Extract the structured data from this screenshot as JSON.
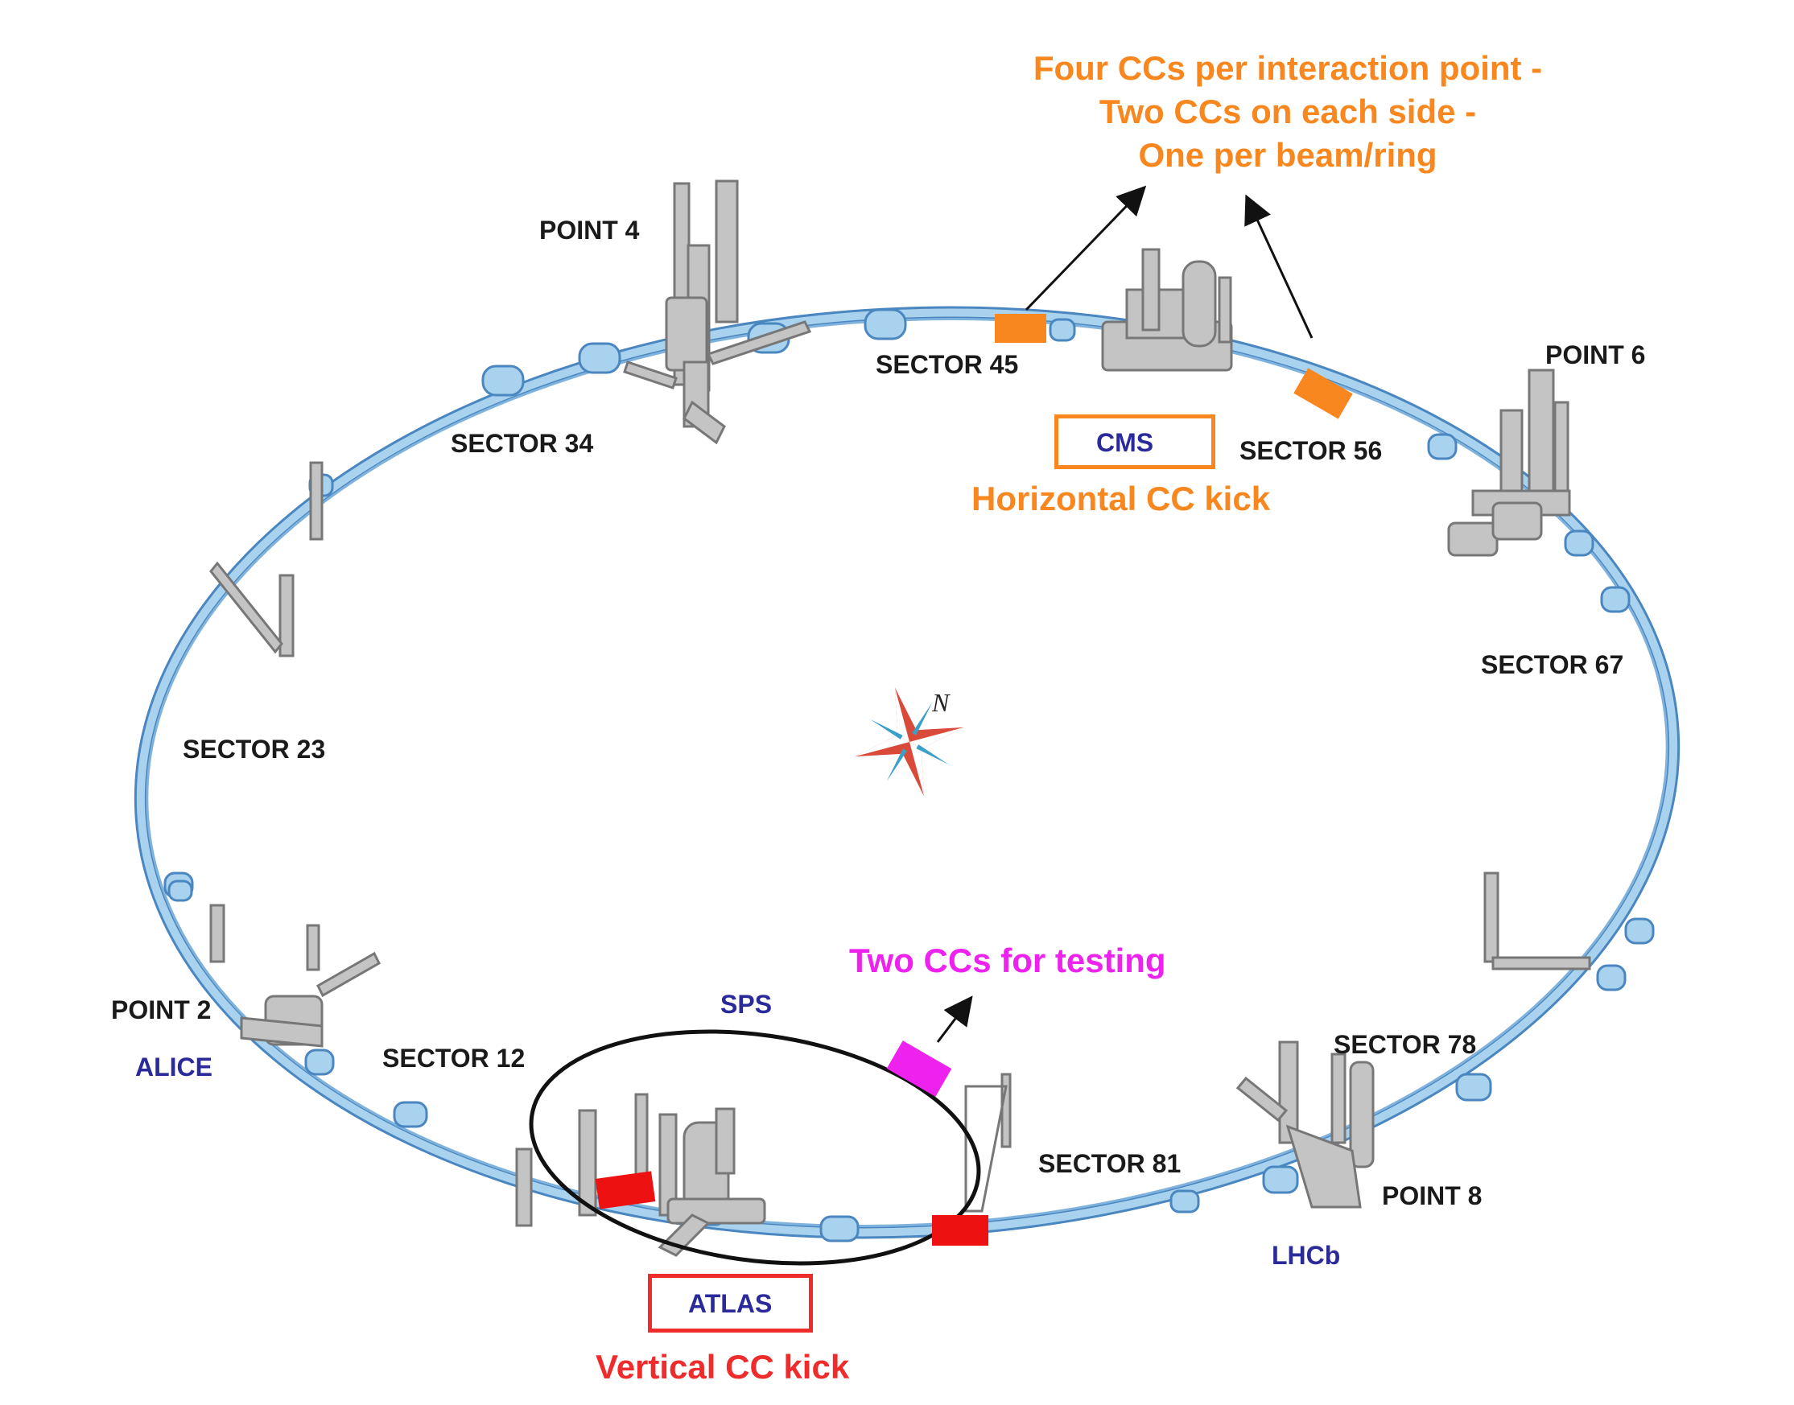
{
  "annotations": {
    "four_ccs": [
      "Four CCs per interaction point -",
      "Two CCs on each side -",
      "One per beam/ring"
    ],
    "horizontal_kick": "Horizontal CC kick",
    "vertical_kick": "Vertical CC kick",
    "two_ccs_testing": "Two CCs for testing"
  },
  "experiments": {
    "cms": "CMS",
    "atlas": "ATLAS",
    "alice": "ALICE",
    "lhcb": "LHCb"
  },
  "ring": {
    "sps": "SPS"
  },
  "points": {
    "p2": "POINT 2",
    "p4": "POINT 4",
    "p6": "POINT 6",
    "p8": "POINT 8"
  },
  "sectors": {
    "s12": "SECTOR 12",
    "s23": "SECTOR 23",
    "s34": "SECTOR 34",
    "s45": "SECTOR 45",
    "s56": "SECTOR 56",
    "s67": "SECTOR 67",
    "s78": "SECTOR 78",
    "s81": "SECTOR 81"
  },
  "compass": {
    "north": "N"
  },
  "colors": {
    "beam_pipe": "#a9d2ee",
    "beam_outline": "#4a86bf",
    "structure_gray": "#c4c4c4",
    "orange_cc": "#f7871e",
    "red_cc": "#ee1111",
    "magenta_cc": "#ee22ee",
    "label_blue": "#2a2a9a"
  }
}
